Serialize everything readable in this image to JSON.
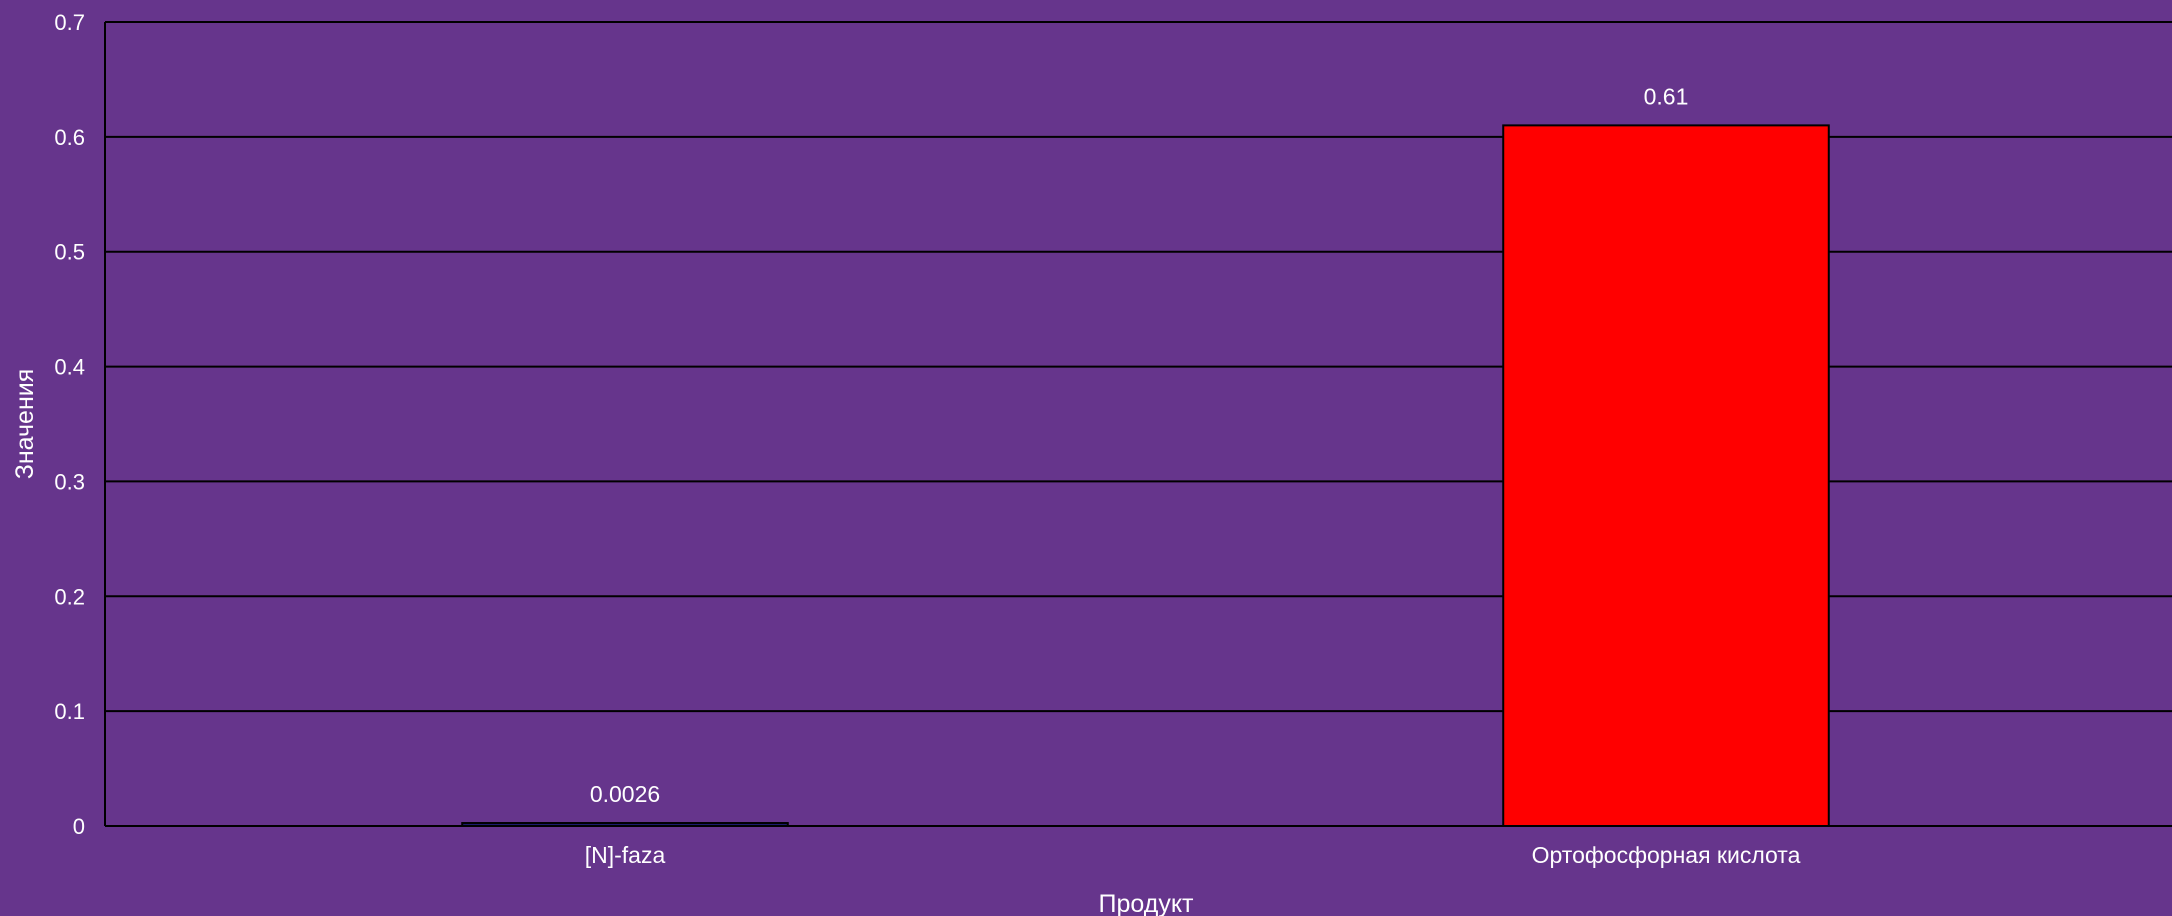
{
  "chart_data": {
    "type": "bar",
    "title": "",
    "xlabel": "Продукт",
    "ylabel": "Значения",
    "ylim": [
      0,
      0.7
    ],
    "yticks": [
      "0",
      "0.1",
      "0.2",
      "0.3",
      "0.4",
      "0.5",
      "0.6",
      "0.7"
    ],
    "grid": true,
    "categories": [
      "[N]-faza",
      "Ортофосфорная кислота"
    ],
    "values": [
      0.0026,
      0.61
    ],
    "data_labels": [
      "0.0026",
      "0.61"
    ],
    "colors": [
      "#1b1b6e",
      "#ff0000"
    ],
    "background": "#66358c",
    "grid_color": "#000000",
    "text_color": "#ffffff"
  }
}
